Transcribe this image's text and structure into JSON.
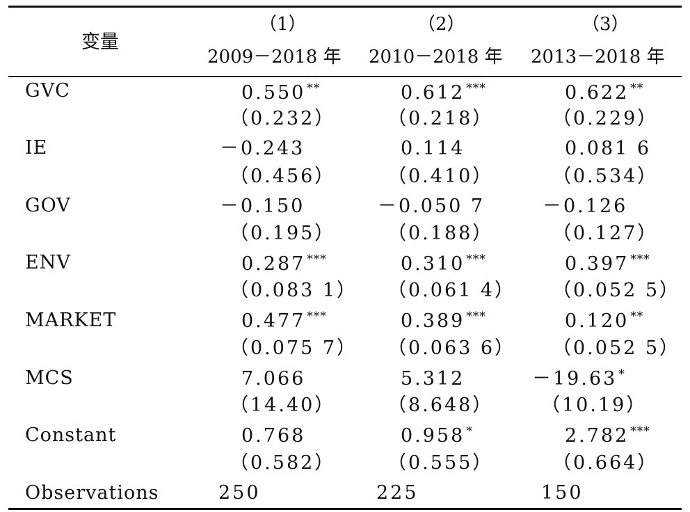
{
  "header": {
    "variable_label": "变量",
    "columns": [
      {
        "number": "（1）",
        "period": "2009－2018 年"
      },
      {
        "number": "（2）",
        "period": "2010－2018 年"
      },
      {
        "number": "（3）",
        "period": "2013－2018 年"
      }
    ]
  },
  "rows": [
    {
      "label": "GVC",
      "coef": [
        {
          "v": "0.550",
          "s": "**"
        },
        {
          "v": "0.612",
          "s": "***"
        },
        {
          "v": "0.622",
          "s": "**"
        }
      ],
      "se": [
        "（0.232）",
        "（0.218）",
        "（0.229）"
      ]
    },
    {
      "label": "IE",
      "coef": [
        {
          "v": "－0.243",
          "s": ""
        },
        {
          "v": "0.114",
          "s": ""
        },
        {
          "v": "0.081 6",
          "s": ""
        }
      ],
      "se": [
        "（0.456）",
        "（0.410）",
        "（0.534）"
      ]
    },
    {
      "label": "GOV",
      "coef": [
        {
          "v": "－0.150",
          "s": ""
        },
        {
          "v": "－0.050 7",
          "s": ""
        },
        {
          "v": "－0.126",
          "s": ""
        }
      ],
      "se": [
        "（0.195）",
        "（0.188）",
        "（0.127）"
      ]
    },
    {
      "label": "ENV",
      "coef": [
        {
          "v": "0.287",
          "s": "***"
        },
        {
          "v": "0.310",
          "s": "***"
        },
        {
          "v": "0.397",
          "s": "***"
        }
      ],
      "se": [
        "（0.083 1）",
        "（0.061 4）",
        "（0.052 5）"
      ]
    },
    {
      "label": "MARKET",
      "coef": [
        {
          "v": "0.477",
          "s": "***"
        },
        {
          "v": "0.389",
          "s": "***"
        },
        {
          "v": "0.120",
          "s": "**"
        }
      ],
      "se": [
        "（0.075 7）",
        "（0.063 6）",
        "（0.052 5）"
      ]
    },
    {
      "label": "MCS",
      "coef": [
        {
          "v": "7.066",
          "s": ""
        },
        {
          "v": "5.312",
          "s": ""
        },
        {
          "v": "－19.63",
          "s": "*"
        }
      ],
      "se": [
        "（14.40）",
        "（8.648）",
        "（10.19）"
      ]
    },
    {
      "label": "Constant",
      "coef": [
        {
          "v": "0.768",
          "s": ""
        },
        {
          "v": "0.958",
          "s": "*"
        },
        {
          "v": "2.782",
          "s": "***"
        }
      ],
      "se": [
        "（0.582）",
        "（0.555）",
        "（0.664）"
      ]
    }
  ],
  "observations": {
    "label": "Observations",
    "values": [
      "250",
      "225",
      "150"
    ]
  }
}
